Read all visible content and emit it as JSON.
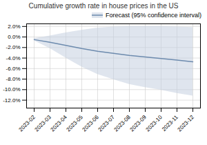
{
  "chart_data": {
    "type": "line",
    "title": "Cumulative growth rate in house prices in the US",
    "categories": [
      "2023-02",
      "2023-03",
      "2023-04",
      "2023-05",
      "2023-06",
      "2023-07",
      "2023-08",
      "2023-09",
      "2023-10",
      "2023-11",
      "2023-12"
    ],
    "series": [
      {
        "name": "Forecast (95% confidence interval)",
        "color": "#6d8bae",
        "values": [
          -0.5,
          -1.0,
          -1.6,
          -2.2,
          -2.7,
          -3.1,
          -3.5,
          -3.8,
          -4.1,
          -4.4,
          -4.7
        ]
      }
    ],
    "band": {
      "color": "#c5cfe0",
      "upper": [
        -0.3,
        0.2,
        0.8,
        1.3,
        1.7,
        1.9,
        2.0,
        2.0,
        2.0,
        1.9,
        1.8
      ],
      "lower": [
        -0.7,
        -2.2,
        -4.0,
        -5.7,
        -7.1,
        -8.1,
        -9.0,
        -9.6,
        -10.1,
        -10.7,
        -11.2
      ]
    },
    "ylim": [
      -13.5,
      2.5
    ],
    "yticks": [
      {
        "value": 2.0,
        "label": "2.0%"
      },
      {
        "value": 0.0,
        "label": "0.0%"
      },
      {
        "value": -2.0,
        "label": "-2.0%"
      },
      {
        "value": -4.0,
        "label": "-4.0%"
      },
      {
        "value": -6.0,
        "label": "-6.0%"
      },
      {
        "value": -8.0,
        "label": "-8.0%"
      },
      {
        "value": -10.0,
        "label": "-10.0%"
      },
      {
        "value": -12.0,
        "label": "-12.0%"
      }
    ],
    "grid": true,
    "legend": "upper right"
  }
}
